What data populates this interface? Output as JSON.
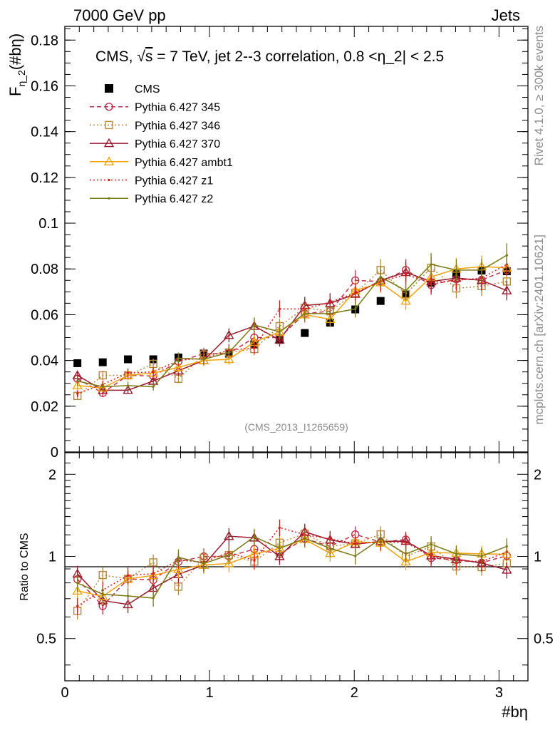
{
  "header": {
    "left": "7000 GeV pp",
    "right": "Jets"
  },
  "side": {
    "rivet": "Rivet 4.1.0, ≥ 300k events",
    "mcplots": "mcplots.cern.ch [arXiv:2401.10621]"
  },
  "chart_data": {
    "type": "scatter",
    "title": "CMS, √s = 7 TeV, jet 2--3 correlation, 0.8 <η_2| < 2.5",
    "title_parts": {
      "pre": "CMS, ",
      "sqrt": "√",
      "s": "s",
      "post": " = 7 TeV, jet 2--3 correlation, 0.8 <η_2| < 2.5"
    },
    "watermark": "(CMS_2013_I1265659)",
    "xlabel": "#bη",
    "ylabel": "F",
    "ylabel_sub": "η_2",
    "ylabel_tail": "(#bη)",
    "ratio_ylabel": "Ratio to CMS",
    "xlim": [
      0,
      3.2
    ],
    "ylim": [
      0,
      0.186
    ],
    "ratio_ylim": [
      0.35,
      2.4
    ],
    "xticks": [
      "0",
      "1",
      "2",
      "3"
    ],
    "yticks": [
      "0",
      "0.02",
      "0.04",
      "0.06",
      "0.08",
      "0.1",
      "0.12",
      "0.14",
      "0.16",
      "0.18"
    ],
    "ratio_yticks": [
      "0.5",
      "1",
      "2"
    ],
    "x": [
      0.087,
      0.262,
      0.436,
      0.611,
      0.785,
      0.96,
      1.134,
      1.309,
      1.484,
      1.658,
      1.833,
      2.007,
      2.182,
      2.356,
      2.531,
      2.705,
      2.88,
      3.054
    ],
    "series": [
      {
        "name": "CMS",
        "color": "#000000",
        "marker": "square-filled",
        "line": "none",
        "values": [
          0.0388,
          0.0392,
          0.0405,
          0.0405,
          0.0413,
          0.043,
          0.043,
          0.047,
          0.049,
          0.052,
          0.0565,
          0.0623,
          0.066,
          0.069,
          0.074,
          0.0778,
          0.0793,
          0.079
        ]
      },
      {
        "name": "Pythia 6.427 345",
        "color": "#c0304a",
        "marker": "circle-open",
        "line": "dashed",
        "values": [
          0.032,
          0.0258,
          0.0335,
          0.0332,
          0.0395,
          0.043,
          0.043,
          0.05,
          0.05,
          0.0605,
          0.0615,
          0.075,
          0.0745,
          0.0795,
          0.073,
          0.0755,
          0.0752,
          0.0795
        ]
      },
      {
        "name": "Pythia 6.427 346",
        "color": "#b8893a",
        "marker": "square-open",
        "line": "dotted",
        "values": [
          0.0245,
          0.0335,
          0.0335,
          0.0385,
          0.032,
          0.0425,
          0.0435,
          0.045,
          0.055,
          0.063,
          0.0615,
          0.0695,
          0.0795,
          0.069,
          0.0805,
          0.0715,
          0.0725,
          0.0745
        ]
      },
      {
        "name": "Pythia 6.427 370",
        "color": "#9b1a2e",
        "marker": "triangle-open",
        "line": "solid",
        "values": [
          0.0335,
          0.027,
          0.027,
          0.031,
          0.0355,
          0.04,
          0.051,
          0.055,
          0.049,
          0.064,
          0.065,
          0.069,
          0.075,
          0.0785,
          0.0745,
          0.076,
          0.075,
          0.0705
        ]
      },
      {
        "name": "Pythia 6.427 ambt1",
        "color": "#f2a20c",
        "marker": "triangle-open",
        "line": "solid",
        "values": [
          0.029,
          0.028,
          0.0335,
          0.0345,
          0.037,
          0.04,
          0.0405,
          0.048,
          0.0525,
          0.06,
          0.058,
          0.0705,
          0.074,
          0.066,
          0.0765,
          0.08,
          0.081,
          0.0805
        ]
      },
      {
        "name": "Pythia 6.427 z1",
        "color": "#d81a1a",
        "marker": "dot",
        "line": "dotted",
        "values": [
          0.0255,
          0.0295,
          0.0345,
          0.035,
          0.04,
          0.041,
          0.0445,
          0.0455,
          0.0625,
          0.0625,
          0.0655,
          0.0695,
          0.0745,
          0.0775,
          0.074,
          0.075,
          0.076,
          0.082
        ]
      },
      {
        "name": "Pythia 6.427 z2",
        "color": "#7a7a12",
        "marker": "dot",
        "line": "solid",
        "values": [
          0.031,
          0.0285,
          0.029,
          0.0285,
          0.041,
          0.0405,
          0.0435,
          0.0555,
          0.0525,
          0.0605,
          0.0605,
          0.0625,
          0.0765,
          0.0705,
          0.082,
          0.0795,
          0.0795,
          0.086
        ]
      }
    ]
  }
}
